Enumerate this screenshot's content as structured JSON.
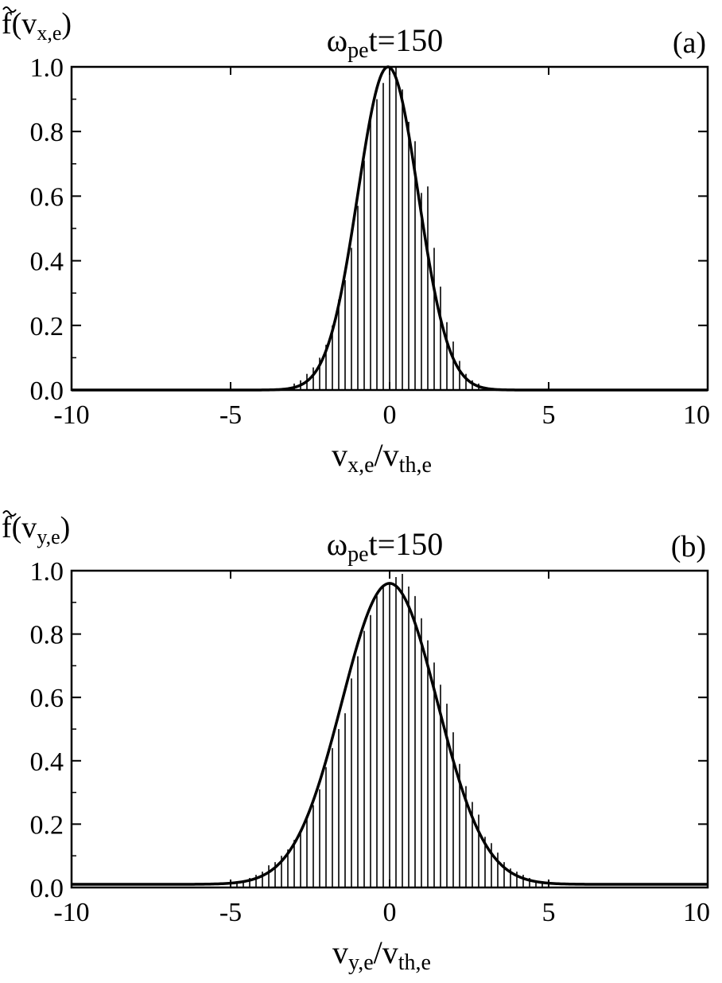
{
  "chart_data": [
    {
      "type": "bar",
      "panel_label": "(a)",
      "title": {
        "main": "ω",
        "sub": "pe",
        "rest": "t=150"
      },
      "ylabel": {
        "main": "f(v",
        "sub": "x,e",
        "close": ")"
      },
      "xlabel": {
        "main": "v",
        "sub": "x,e",
        "mid": "/v",
        "sub2": "th,e"
      },
      "xlim": [
        -10,
        10
      ],
      "ylim": [
        0,
        1.0
      ],
      "xticks": [
        "-10",
        "-5",
        "0",
        "5",
        "10"
      ],
      "yticks": [
        "0.0",
        "0.2",
        "0.4",
        "0.6",
        "0.8",
        "1.0"
      ],
      "grid": false,
      "fit": {
        "type": "line",
        "amplitude": 1.0,
        "center": -0.05,
        "sigma": 0.95,
        "baseline": 0.0
      },
      "histogram": {
        "x": [
          -3.0,
          -2.8,
          -2.6,
          -2.4,
          -2.2,
          -2.0,
          -1.8,
          -1.6,
          -1.4,
          -1.2,
          -1.0,
          -0.8,
          -0.6,
          -0.4,
          -0.2,
          0.0,
          0.2,
          0.4,
          0.6,
          0.8,
          1.0,
          1.2,
          1.4,
          1.6,
          1.8,
          2.0,
          2.2,
          2.4,
          2.6,
          2.8,
          3.0
        ],
        "values": [
          0.02,
          0.03,
          0.05,
          0.07,
          0.1,
          0.14,
          0.2,
          0.28,
          0.34,
          0.44,
          0.57,
          0.71,
          0.84,
          0.9,
          0.95,
          0.98,
          1.0,
          0.93,
          0.83,
          0.77,
          0.61,
          0.63,
          0.44,
          0.32,
          0.21,
          0.15,
          0.09,
          0.05,
          0.03,
          0.02,
          0.01
        ]
      }
    },
    {
      "type": "bar",
      "panel_label": "(b)",
      "title": {
        "main": "ω",
        "sub": "pe",
        "rest": "t=150"
      },
      "ylabel": {
        "main": "f(v",
        "sub": "y,e",
        "close": ")"
      },
      "xlabel": {
        "main": "v",
        "sub": "y,e",
        "mid": "/v",
        "sub2": "th,e"
      },
      "xlim": [
        -10,
        10
      ],
      "ylim": [
        0,
        1.0
      ],
      "xticks": [
        "-10",
        "-5",
        "0",
        "5",
        "10"
      ],
      "yticks": [
        "0.0",
        "0.2",
        "0.4",
        "0.6",
        "0.8",
        "1.0"
      ],
      "grid": false,
      "fit": {
        "type": "line",
        "amplitude": 0.96,
        "center": 0.0,
        "sigma": 1.5,
        "baseline": 0.01
      },
      "histogram": {
        "x": [
          -4.8,
          -4.6,
          -4.4,
          -4.2,
          -4.0,
          -3.8,
          -3.6,
          -3.4,
          -3.2,
          -3.0,
          -2.8,
          -2.6,
          -2.4,
          -2.2,
          -2.0,
          -1.8,
          -1.6,
          -1.4,
          -1.2,
          -1.0,
          -0.8,
          -0.6,
          -0.4,
          -0.2,
          0.0,
          0.2,
          0.4,
          0.6,
          0.8,
          1.0,
          1.2,
          1.4,
          1.6,
          1.8,
          2.0,
          2.2,
          2.4,
          2.6,
          2.8,
          3.0,
          3.2,
          3.4,
          3.6,
          3.8,
          4.0,
          4.2,
          4.4,
          4.6,
          4.8
        ],
        "values": [
          0.02,
          0.02,
          0.03,
          0.04,
          0.05,
          0.07,
          0.08,
          0.1,
          0.12,
          0.15,
          0.18,
          0.22,
          0.26,
          0.31,
          0.38,
          0.44,
          0.5,
          0.55,
          0.66,
          0.73,
          0.81,
          0.86,
          0.92,
          0.95,
          0.96,
          0.98,
          0.99,
          0.95,
          0.92,
          0.85,
          0.78,
          0.71,
          0.64,
          0.58,
          0.49,
          0.39,
          0.32,
          0.27,
          0.23,
          0.16,
          0.14,
          0.11,
          0.08,
          0.06,
          0.05,
          0.04,
          0.03,
          0.02,
          0.02
        ]
      }
    }
  ]
}
